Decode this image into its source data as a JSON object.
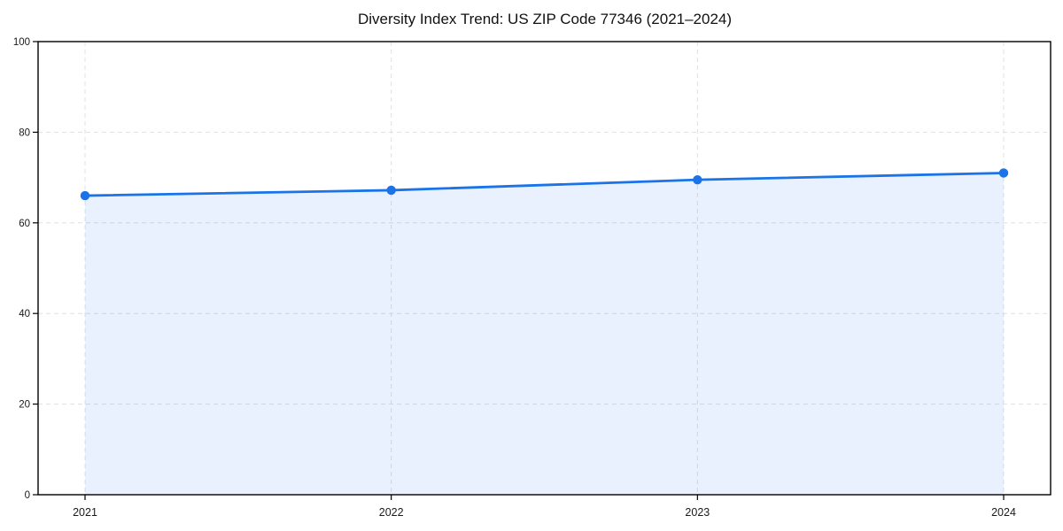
{
  "chart_data": {
    "type": "area",
    "title": "Diversity Index Trend: US ZIP Code 77346 (2021–2024)",
    "series_name": "Diversity Index",
    "x": [
      2021,
      2022,
      2023,
      2024
    ],
    "values": [
      66.0,
      67.2,
      69.5,
      71.0
    ],
    "xlabel": "",
    "ylabel": "",
    "ylim": [
      0,
      100
    ],
    "yticks": [
      0,
      20,
      40,
      60,
      80,
      100
    ],
    "grid": true,
    "grid_style": "dashed",
    "legend_position": "none",
    "marker": "circle",
    "colors": {
      "line": "#1a73e8",
      "marker": "#1a73e8",
      "fill": "rgba(26,115,232,0.10)",
      "grid": "#e0e0e0",
      "spine": "#000000",
      "background": "#ffffff",
      "text": "#1a1a1a"
    }
  }
}
